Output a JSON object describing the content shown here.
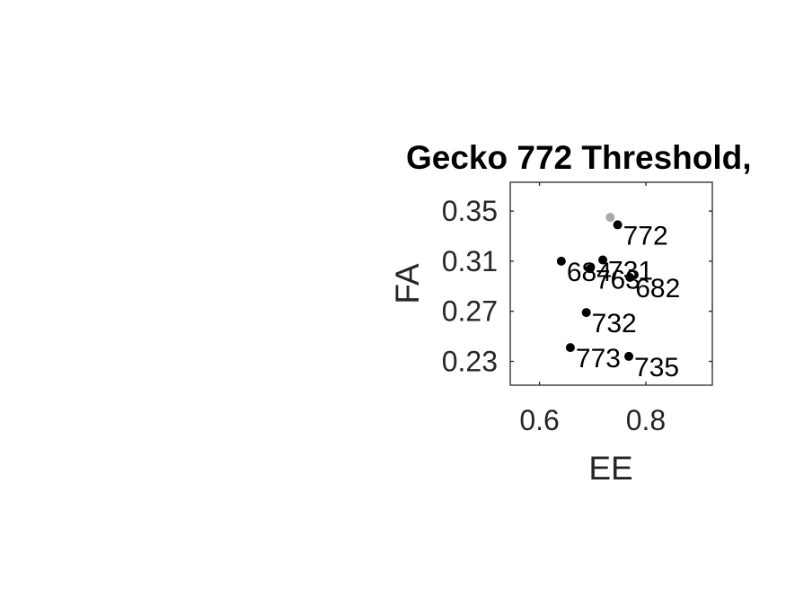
{
  "chart_data": {
    "type": "scatter",
    "title": "Gecko 772 Threshold,",
    "xlabel": "EE",
    "ylabel": "FA",
    "xlim": [
      0.545,
      0.925
    ],
    "ylim": [
      0.211,
      0.373
    ],
    "x_ticks": [
      "0.6",
      "0.8"
    ],
    "x_tick_values": [
      0.6,
      0.8
    ],
    "y_ticks": [
      "0.23",
      "0.27",
      "0.31",
      "0.35"
    ],
    "y_tick_values": [
      0.23,
      0.27,
      0.31,
      0.35
    ],
    "grid": false,
    "series": [
      {
        "color": "#000000",
        "points": [
          {
            "x": 0.747,
            "y": 0.339,
            "label": "772"
          },
          {
            "x": 0.641,
            "y": 0.31,
            "label": "684"
          },
          {
            "x": 0.719,
            "y": 0.311,
            "label": "731"
          },
          {
            "x": 0.695,
            "y": 0.304,
            "label": "763"
          },
          {
            "x": 0.77,
            "y": 0.297,
            "label": "682"
          },
          {
            "x": 0.688,
            "y": 0.269,
            "label": "732"
          },
          {
            "x": 0.658,
            "y": 0.241,
            "label": "773"
          },
          {
            "x": 0.768,
            "y": 0.234,
            "label": "735"
          }
        ]
      },
      {
        "color": "#aaaaaa",
        "points": [
          {
            "x": 0.733,
            "y": 0.345,
            "label": ""
          }
        ]
      }
    ]
  }
}
